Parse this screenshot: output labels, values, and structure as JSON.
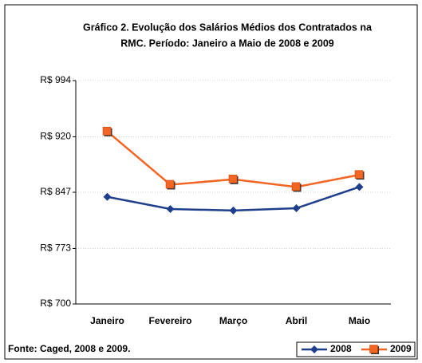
{
  "chart_data": {
    "type": "line",
    "title": [
      "Gráfico 2. Evolução dos Salários Médios dos Contratados na",
      "RMC.  Período: Janeiro a Maio de 2008 e 2009"
    ],
    "categories": [
      "Janeiro",
      "Fevereiro",
      "Março",
      "Abril",
      "Maio"
    ],
    "series": [
      {
        "name": "2008",
        "color": "#1f3f8c",
        "marker": "diamond",
        "values": [
          841,
          825,
          823,
          826,
          854
        ]
      },
      {
        "name": "2009",
        "color": "#f26522",
        "marker": "square",
        "values": [
          927,
          857,
          864,
          854,
          870
        ]
      }
    ],
    "ylim": [
      700,
      994
    ],
    "yticks": [
      {
        "value": 700,
        "label": "R$ 700"
      },
      {
        "value": 773,
        "label": "R$ 773"
      },
      {
        "value": 847,
        "label": "R$ 847"
      },
      {
        "value": 920,
        "label": "R$ 920"
      },
      {
        "value": 994,
        "label": "R$ 994"
      }
    ],
    "grid": true,
    "source": "Fonte: Caged, 2008 e 2009.",
    "legend": "bottom-right"
  }
}
